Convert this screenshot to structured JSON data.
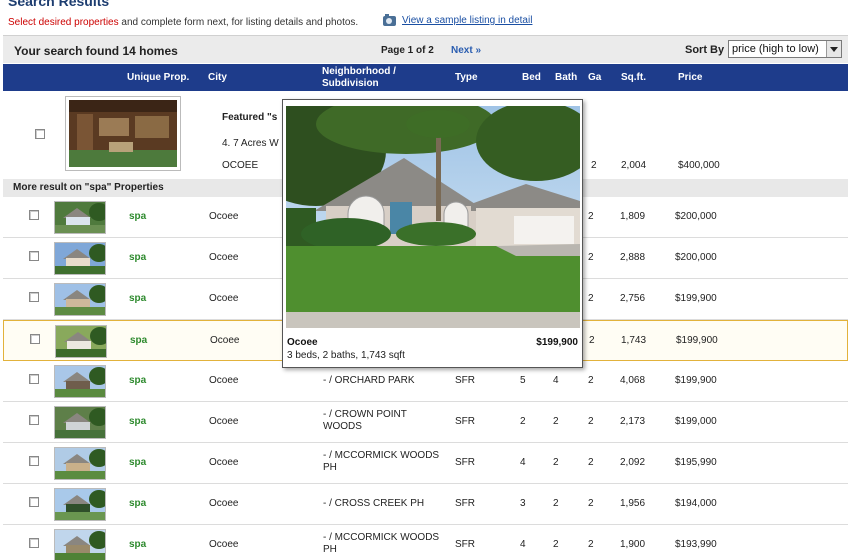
{
  "header": {
    "title": "Search Results",
    "instructions_red": "Select desired properties",
    "instructions_rest": " and complete form next, for listing details and photos.",
    "sample_link": "View a sample listing in detail"
  },
  "summary": {
    "found_text": "Your search found 14 homes",
    "page_text": "Page 1 of 2",
    "next_label": "Next »",
    "sort_label": "Sort By",
    "sort_value": "price (high to low)"
  },
  "columns": {
    "unique": "Unique Prop.",
    "city": "City",
    "neighborhood_line1": "Neighborhood /",
    "neighborhood_line2": "Subdivision",
    "type": "Type",
    "bed": "Bed",
    "bath": "Bath",
    "garage": "Ga",
    "sqft": "Sq.ft.",
    "price": "Price"
  },
  "featured": {
    "title": "Featured \"s",
    "line2": "4. 7 Acres W",
    "city": "OCOEE",
    "garage": "2",
    "sqft": "2,004",
    "price": "$400,000"
  },
  "more_label": "More result on \"spa\" Properties",
  "rows": [
    {
      "prop": "spa",
      "city": "Ocoee",
      "neighborhood": "",
      "type": "",
      "bed": "",
      "bath": "",
      "garage": "2",
      "sqft": "1,809",
      "price": "$200,000"
    },
    {
      "prop": "spa",
      "city": "Ocoee",
      "neighborhood": "",
      "type": "",
      "bed": "",
      "bath": "",
      "garage": "2",
      "sqft": "2,888",
      "price": "$200,000"
    },
    {
      "prop": "spa",
      "city": "Ocoee",
      "neighborhood": "",
      "type": "",
      "bed": "",
      "bath": "",
      "garage": "2",
      "sqft": "2,756",
      "price": "$199,900"
    },
    {
      "prop": "spa",
      "city": "Ocoee",
      "neighborhood": "",
      "type": "",
      "bed": "",
      "bath": "",
      "garage": "2",
      "sqft": "1,743",
      "price": "$199,900"
    },
    {
      "prop": "spa",
      "city": "Ocoee",
      "neighborhood": "- / ORCHARD PARK",
      "type": "SFR",
      "bed": "5",
      "bath": "4",
      "garage": "2",
      "sqft": "4,068",
      "price": "$199,900"
    },
    {
      "prop": "spa",
      "city": "Ocoee",
      "neighborhood": "- / CROWN POINT WOODS",
      "type": "SFR",
      "bed": "2",
      "bath": "2",
      "garage": "2",
      "sqft": "2,173",
      "price": "$199,000"
    },
    {
      "prop": "spa",
      "city": "Ocoee",
      "neighborhood": "- / MCCORMICK WOODS PH",
      "type": "SFR",
      "bed": "4",
      "bath": "2",
      "garage": "2",
      "sqft": "2,092",
      "price": "$195,990"
    },
    {
      "prop": "spa",
      "city": "Ocoee",
      "neighborhood": "- / CROSS CREEK PH",
      "type": "SFR",
      "bed": "3",
      "bath": "2",
      "garage": "2",
      "sqft": "1,956",
      "price": "$194,000"
    },
    {
      "prop": "spa",
      "city": "Ocoee",
      "neighborhood": "- / MCCORMICK WOODS PH",
      "type": "SFR",
      "bed": "4",
      "bath": "2",
      "garage": "2",
      "sqft": "1,900",
      "price": "$193,990"
    }
  ],
  "popup": {
    "city": "Ocoee",
    "price": "$199,900",
    "details": "3 beds, 2 baths, 1,743 sqft"
  },
  "colors": {
    "header_blue": "#1e3c8b",
    "property_green": "#2e8a2e",
    "highlight_border": "#e2b23b",
    "instruction_red": "#cc0000"
  }
}
